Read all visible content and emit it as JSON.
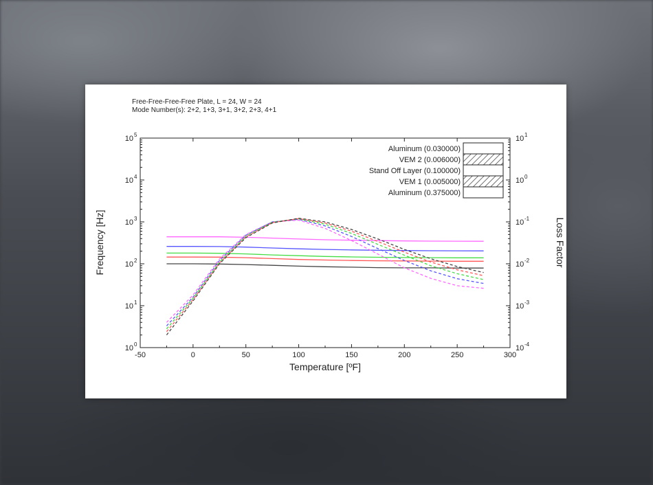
{
  "header": {
    "line1": "Free-Free-Free-Free Plate, L = 24, W = 24",
    "line2": "Mode Number(s): 2+2, 1+3, 3+1, 3+2, 2+3, 4+1"
  },
  "chart_data": {
    "type": "line",
    "xlabel": "Temperature [ºF]",
    "ylabel": "Frequency [Hz]",
    "y2label": "Loss Factor",
    "xlim": [
      -50,
      300
    ],
    "xticks": [
      "-50",
      "0",
      "50",
      "100",
      "150",
      "200",
      "250",
      "300"
    ],
    "ylim_log": [
      1,
      100000
    ],
    "y2lim_log": [
      0.0001,
      10
    ],
    "y_scale": "log",
    "y2_scale": "log",
    "grid": false,
    "legend_placement": "top-right",
    "legend": [
      {
        "label": "Aluminum (0.030000)",
        "fill": "none"
      },
      {
        "label": "VEM 2 (0.006000)",
        "fill": "hatched"
      },
      {
        "label": "Stand Off Layer (0.100000)",
        "fill": "none"
      },
      {
        "label": "VEM 1 (0.005000)",
        "fill": "hatched"
      },
      {
        "label": "Aluminum (0.375000)",
        "fill": "none"
      }
    ],
    "x": [
      -25,
      0,
      25,
      50,
      75,
      100,
      125,
      150,
      175,
      200,
      225,
      250,
      275
    ],
    "frequency_series": [
      {
        "color": "#ff66ff",
        "values": [
          440,
          440,
          440,
          430,
          410,
          390,
          375,
          365,
          358,
          352,
          348,
          346,
          345
        ]
      },
      {
        "color": "#5555ff",
        "values": [
          260,
          260,
          258,
          250,
          238,
          228,
          220,
          214,
          210,
          207,
          205,
          204,
          203
        ]
      },
      {
        "color": "#44dd44",
        "values": [
          180,
          180,
          178,
          172,
          163,
          156,
          150,
          146,
          143,
          141,
          140,
          139,
          139
        ]
      },
      {
        "color": "#ff5555",
        "values": [
          145,
          145,
          144,
          140,
          133,
          127,
          123,
          120,
          118,
          117,
          116,
          115,
          115
        ]
      },
      {
        "color": "#444444",
        "values": [
          100,
          100,
          99,
          96,
          92,
          88,
          85,
          83,
          81,
          80,
          80,
          79,
          79
        ]
      }
    ],
    "loss_factor_series": [
      {
        "color": "#ff66ff",
        "values": [
          0.0004,
          0.0018,
          0.013,
          0.05,
          0.1,
          0.11,
          0.07,
          0.036,
          0.017,
          0.008,
          0.0045,
          0.003,
          0.0026
        ]
      },
      {
        "color": "#5555ff",
        "values": [
          0.00033,
          0.0016,
          0.012,
          0.048,
          0.1,
          0.115,
          0.08,
          0.045,
          0.023,
          0.012,
          0.0068,
          0.0044,
          0.0034
        ]
      },
      {
        "color": "#44dd44",
        "values": [
          0.00028,
          0.0015,
          0.011,
          0.046,
          0.098,
          0.118,
          0.088,
          0.053,
          0.029,
          0.016,
          0.009,
          0.0058,
          0.0042
        ]
      },
      {
        "color": "#ff5555",
        "values": [
          0.00024,
          0.0014,
          0.0105,
          0.044,
          0.096,
          0.12,
          0.094,
          0.06,
          0.034,
          0.019,
          0.011,
          0.0072,
          0.0052
        ]
      },
      {
        "color": "#444444",
        "values": [
          0.0002,
          0.0013,
          0.01,
          0.042,
          0.094,
          0.122,
          0.1,
          0.066,
          0.039,
          0.022,
          0.0132,
          0.0086,
          0.0062
        ]
      }
    ]
  }
}
